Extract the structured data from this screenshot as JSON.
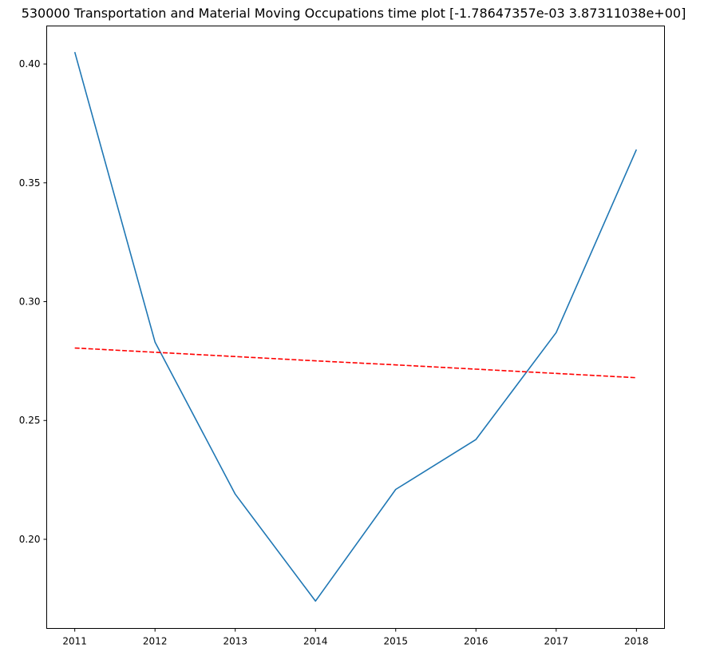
{
  "chart_data": {
    "type": "line",
    "title": "530000 Transportation and Material Moving Occupations time plot [-1.78647357e-03  3.87311038e+00]",
    "xlabel": "",
    "ylabel": "",
    "x": [
      2011,
      2012,
      2013,
      2014,
      2015,
      2016,
      2017,
      2018
    ],
    "x_tick_labels": [
      "2011",
      "2012",
      "2013",
      "2014",
      "2015",
      "2016",
      "2017",
      "2018"
    ],
    "y_tick_values": [
      0.2,
      0.25,
      0.3,
      0.35,
      0.4
    ],
    "y_tick_labels": [
      "0.20",
      "0.25",
      "0.30",
      "0.35",
      "0.40"
    ],
    "xlim": [
      2010.65,
      2018.35
    ],
    "ylim": [
      0.1625,
      0.416
    ],
    "grid": false,
    "legend": "none",
    "series": [
      {
        "values": [
          0.405,
          0.283,
          0.219,
          0.174,
          0.221,
          0.242,
          0.287,
          0.364
        ],
        "color": "#1f77b4",
        "style": "solid"
      },
      {
        "values": [
          0.2805,
          0.2787,
          0.2769,
          0.2751,
          0.2734,
          0.2716,
          0.2698,
          0.268
        ],
        "color": "#ff0000",
        "style": "dashed"
      }
    ]
  }
}
